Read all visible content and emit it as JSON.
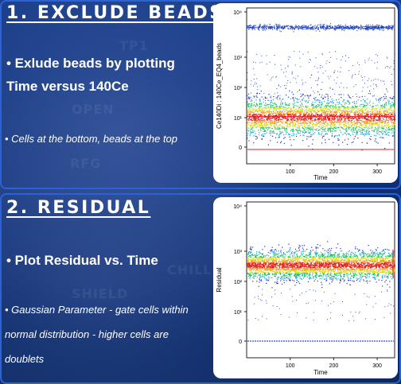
{
  "panel1": {
    "title": "1. EXCLUDE BEADS",
    "bullet_main_line1": "• Exlude beads by plotting",
    "bullet_main_line2": "Time versus 140Ce",
    "bullet_sub": "• Cells at the bottom, beads at the top"
  },
  "panel2": {
    "title": "2. RESIDUAL",
    "bullet_main": "• Plot Residual vs. Time",
    "bullet_sub_line1": "• Gaussian Parameter - gate cells within",
    "bullet_sub_line2": "normal distribution  - higher cells are",
    "bullet_sub_line3": "doublets"
  },
  "chart_data": [
    {
      "type": "scatter",
      "xlabel": "Time",
      "ylabel": "Ce140Di : 140Ce_EQ4_beads",
      "x_ticks": [
        "100",
        "200",
        "300"
      ],
      "y_ticks": [
        "0",
        "10¹",
        "10²",
        "10³",
        "10⁴"
      ],
      "xlim": [
        0,
        340
      ],
      "y_scale": "arcsinh",
      "populations": [
        {
          "x_range": [
            0,
            340
          ],
          "y_center": 2500,
          "y_spread": 400
        },
        {
          "x_range": [
            0,
            340
          ],
          "y_center": 3,
          "y_spread": 7
        }
      ],
      "gate_lines_y": [
        10,
        -1
      ]
    },
    {
      "type": "scatter",
      "xlabel": "Time",
      "ylabel": "Residual",
      "x_ticks": [
        "100",
        "200",
        "300"
      ],
      "y_ticks": [
        "0",
        "10¹",
        "10²",
        "10³",
        "10⁴"
      ],
      "xlim": [
        0,
        340
      ],
      "y_scale": "arcsinh",
      "populations": [
        {
          "x_range": [
            0,
            340
          ],
          "y_center": 130,
          "y_spread": 120
        }
      ],
      "baseline_y": 0
    }
  ],
  "colors": {
    "panel_border": "#2b63d6",
    "background": "#0f2f74",
    "gate_line": "#e0202a"
  }
}
